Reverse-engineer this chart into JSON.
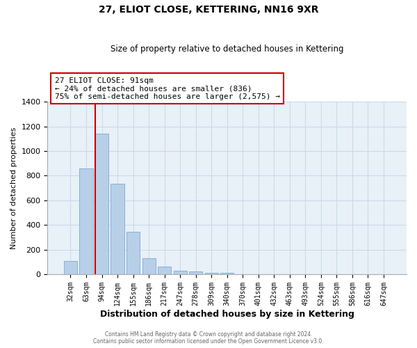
{
  "title": "27, ELIOT CLOSE, KETTERING, NN16 9XR",
  "subtitle": "Size of property relative to detached houses in Kettering",
  "xlabel": "Distribution of detached houses by size in Kettering",
  "ylabel": "Number of detached properties",
  "bin_labels": [
    "32sqm",
    "63sqm",
    "94sqm",
    "124sqm",
    "155sqm",
    "186sqm",
    "217sqm",
    "247sqm",
    "278sqm",
    "309sqm",
    "340sqm",
    "370sqm",
    "401sqm",
    "432sqm",
    "463sqm",
    "493sqm",
    "524sqm",
    "555sqm",
    "586sqm",
    "616sqm",
    "647sqm"
  ],
  "bar_values": [
    105,
    860,
    1140,
    735,
    345,
    130,
    60,
    30,
    20,
    10,
    10,
    0,
    0,
    0,
    0,
    0,
    0,
    0,
    0,
    0,
    0
  ],
  "bar_color": "#b8cfe8",
  "bar_edge_color": "#7aaad0",
  "grid_color": "#c8d8e8",
  "bg_color": "#e8f0f8",
  "vline_x_index": 2,
  "vline_color": "#cc0000",
  "annotation_title": "27 ELIOT CLOSE: 91sqm",
  "annotation_line1": "← 24% of detached houses are smaller (836)",
  "annotation_line2": "75% of semi-detached houses are larger (2,575) →",
  "annotation_box_color": "#cc0000",
  "ylim": [
    0,
    1400
  ],
  "yticks": [
    0,
    200,
    400,
    600,
    800,
    1000,
    1200,
    1400
  ],
  "footer1": "Contains HM Land Registry data © Crown copyright and database right 2024.",
  "footer2": "Contains public sector information licensed under the Open Government Licence v3.0."
}
